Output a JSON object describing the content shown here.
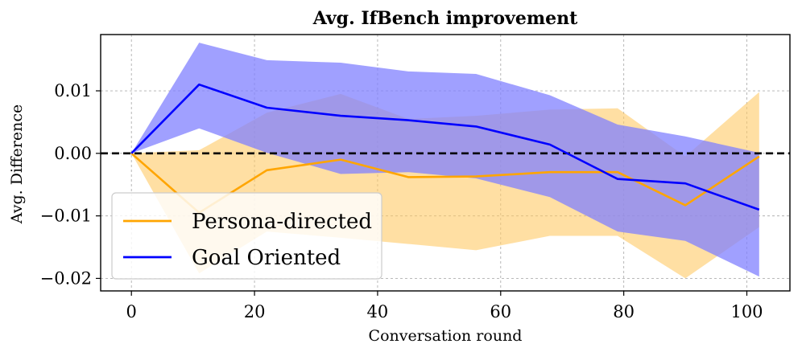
{
  "chart_data": {
    "type": "line",
    "title": "Avg. IfBench improvement",
    "xlabel": "Conversation round",
    "ylabel": "Avg. Difference",
    "xlim": [
      -5,
      107
    ],
    "ylim": [
      -0.022,
      0.019
    ],
    "xticks": [
      0,
      20,
      40,
      60,
      80,
      100
    ],
    "xtick_labels": [
      "0",
      "20",
      "40",
      "60",
      "80",
      "100"
    ],
    "yticks": [
      0.01,
      0.0,
      -0.01,
      -0.02
    ],
    "ytick_labels": [
      "0.01",
      "0.00",
      "−0.01",
      "−0.02"
    ],
    "grid": true,
    "reference_line_y": 0.0,
    "legend_position": "lower-left",
    "x": [
      0,
      11,
      22,
      34,
      45,
      56,
      68,
      79,
      90,
      102
    ],
    "series": [
      {
        "name": "Persona-directed",
        "color": "#ffa500",
        "band_color": "#ffc966",
        "values": [
          0.0,
          -0.0095,
          -0.0027,
          -0.001,
          -0.0038,
          -0.0037,
          -0.003,
          -0.003,
          -0.0083,
          -0.0005
        ],
        "upper": [
          0.0,
          0.0005,
          0.0065,
          0.0095,
          0.0055,
          0.006,
          0.007,
          0.0072,
          -0.0005,
          0.0098
        ],
        "lower": [
          0.0,
          -0.0192,
          -0.0125,
          -0.0135,
          -0.0145,
          -0.0155,
          -0.0132,
          -0.0132,
          -0.02,
          -0.0118
        ]
      },
      {
        "name": "Goal Oriented",
        "color": "#0000ff",
        "band_color": "#8080ff",
        "values": [
          0.0,
          0.011,
          0.0073,
          0.006,
          0.0053,
          0.0043,
          0.0014,
          -0.0041,
          -0.0048,
          -0.009
        ],
        "upper": [
          0.0,
          0.0177,
          0.0149,
          0.0145,
          0.0131,
          0.0127,
          0.0093,
          0.0046,
          0.0027,
          0.0001
        ],
        "lower": [
          0.0,
          0.004,
          0.0001,
          -0.0033,
          -0.003,
          -0.004,
          -0.007,
          -0.0125,
          -0.014,
          -0.0197
        ]
      }
    ]
  }
}
